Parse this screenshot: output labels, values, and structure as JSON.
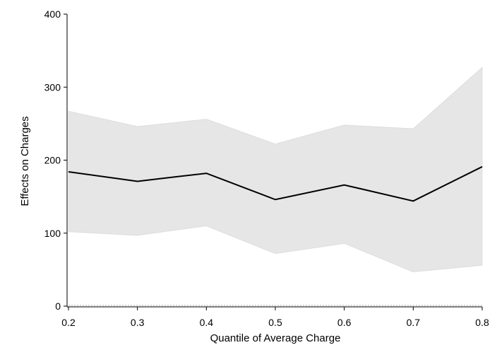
{
  "chart_data": {
    "type": "line",
    "title": "",
    "xlabel": "Quantile of Average Charge",
    "ylabel": "Effects on Charges",
    "x": [
      0.2,
      0.3,
      0.4,
      0.5,
      0.6,
      0.7,
      0.8
    ],
    "x_tick_labels": [
      "0.2",
      "0.3",
      "0.4",
      "0.5",
      "0.6",
      "0.7",
      "0.8"
    ],
    "xlim": [
      0.2,
      0.8
    ],
    "y_ticks": [
      0,
      100,
      200,
      300,
      400
    ],
    "y_tick_labels": [
      "0",
      "100",
      "200",
      "300",
      "400"
    ],
    "ylim": [
      0,
      400
    ],
    "series": [
      {
        "values": [
          184,
          171,
          182,
          146,
          166,
          144,
          191
        ]
      }
    ],
    "band": {
      "upper": [
        267,
        246,
        256,
        222,
        248,
        243,
        327
      ],
      "lower": [
        102,
        97,
        110,
        72,
        86,
        47,
        56
      ]
    },
    "zero_line": 0,
    "grid": false,
    "legend": "none",
    "colors": {
      "line": "#000000",
      "band": "#e6e6e6",
      "band_edge": "#dddddd",
      "zero_line": "#bbbbbb"
    }
  }
}
